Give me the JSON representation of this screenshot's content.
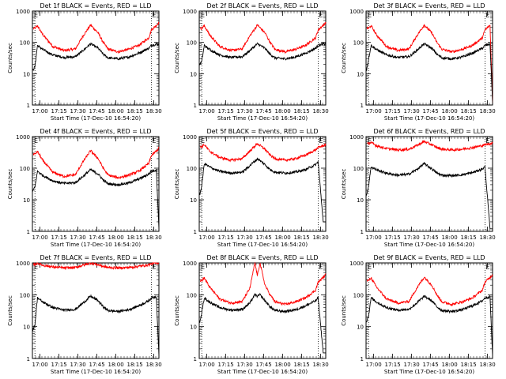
{
  "chart_data": {
    "type": "line",
    "yscale": "log",
    "ylabel": "Counts/sec",
    "xlabel": "Start Time (17-Dec-10 16:54:20)",
    "x_tick_labels": [
      "17:00",
      "17:15",
      "17:30",
      "17:45",
      "18:00",
      "18:15",
      "18:30"
    ],
    "x_ticks_min": [
      6,
      21,
      36,
      51,
      66,
      81,
      96
    ],
    "xlim_min": [
      0,
      100
    ],
    "y_tick_labels": [
      "1",
      "10",
      "100",
      "1000"
    ],
    "ylim": [
      1,
      1000
    ],
    "vlines_min": [
      2,
      94
    ],
    "corner_markers": [
      "E",
      "E"
    ],
    "series_colors": {
      "events": "#000000",
      "lld": "#ff0000"
    },
    "panels": [
      {
        "title": "Det 1f BLACK = Events, RED = LLD",
        "x": [
          0.5,
          2,
          4,
          8,
          16,
          25,
          34,
          40,
          46,
          52,
          56,
          60,
          68,
          76,
          84,
          92,
          94,
          98,
          100
        ],
        "events": [
          13,
          17,
          80,
          60,
          40,
          33,
          35,
          55,
          90,
          65,
          42,
          32,
          30,
          34,
          45,
          65,
          80,
          88,
          90
        ],
        "lld": [
          null,
          280,
          340,
          180,
          75,
          55,
          62,
          160,
          360,
          200,
          100,
          60,
          50,
          60,
          80,
          140,
          250,
          350,
          430
        ]
      },
      {
        "title": "Det 2f BLACK = Events, RED = LLD",
        "x": [
          0.5,
          2,
          4,
          8,
          16,
          25,
          34,
          40,
          46,
          52,
          56,
          60,
          68,
          76,
          84,
          92,
          94,
          98,
          100
        ],
        "events": [
          20,
          25,
          80,
          60,
          40,
          33,
          35,
          55,
          90,
          65,
          42,
          32,
          30,
          34,
          45,
          65,
          80,
          88,
          90
        ],
        "lld": [
          null,
          280,
          340,
          180,
          75,
          55,
          62,
          160,
          360,
          200,
          100,
          60,
          50,
          60,
          80,
          140,
          250,
          350,
          430
        ]
      },
      {
        "title": "Det 3f BLACK = Events, RED = LLD",
        "x": [
          0.5,
          2,
          4,
          8,
          16,
          25,
          34,
          40,
          46,
          52,
          56,
          60,
          68,
          76,
          84,
          92,
          94,
          98,
          100
        ],
        "events": [
          14,
          30,
          80,
          60,
          40,
          33,
          35,
          55,
          90,
          65,
          42,
          32,
          30,
          34,
          45,
          65,
          80,
          88,
          1.2
        ],
        "lld": [
          null,
          280,
          340,
          180,
          75,
          55,
          62,
          160,
          360,
          200,
          100,
          60,
          50,
          60,
          80,
          140,
          250,
          350,
          1.2
        ]
      },
      {
        "title": "Det 4f BLACK = Events, RED = LLD",
        "x": [
          0.5,
          2,
          4,
          8,
          16,
          25,
          34,
          40,
          46,
          52,
          56,
          60,
          68,
          76,
          84,
          92,
          94,
          98,
          100
        ],
        "events": [
          20,
          25,
          80,
          60,
          40,
          33,
          35,
          55,
          90,
          65,
          42,
          32,
          30,
          34,
          45,
          65,
          80,
          88,
          1.2
        ],
        "lld": [
          null,
          280,
          340,
          180,
          75,
          55,
          62,
          160,
          360,
          200,
          100,
          60,
          50,
          60,
          80,
          140,
          250,
          350,
          430
        ]
      },
      {
        "title": "Det 5f BLACK = Events, RED = LLD",
        "x": [
          0.5,
          2,
          4,
          8,
          16,
          25,
          34,
          40,
          46,
          52,
          56,
          60,
          68,
          76,
          84,
          92,
          94,
          98,
          100
        ],
        "events": [
          15,
          28,
          140,
          110,
          80,
          70,
          75,
          120,
          200,
          130,
          90,
          75,
          70,
          75,
          90,
          130,
          160,
          2,
          2
        ],
        "lld": [
          null,
          480,
          560,
          350,
          220,
          180,
          200,
          350,
          600,
          400,
          260,
          200,
          180,
          200,
          260,
          380,
          450,
          520,
          560
        ]
      },
      {
        "title": "Det 6f BLACK = Events, RED = LLD",
        "x": [
          0.5,
          2,
          4,
          8,
          16,
          25,
          34,
          40,
          46,
          52,
          56,
          60,
          68,
          76,
          84,
          92,
          94,
          98,
          100
        ],
        "events": [
          15,
          28,
          110,
          90,
          70,
          60,
          65,
          90,
          140,
          95,
          70,
          60,
          58,
          62,
          72,
          95,
          110,
          1.2,
          1.2
        ],
        "lld": [
          null,
          600,
          650,
          520,
          420,
          380,
          400,
          520,
          700,
          550,
          450,
          400,
          380,
          400,
          450,
          520,
          560,
          600,
          620
        ]
      },
      {
        "title": "Det 7f BLACK = Events, RED = LLD",
        "x": [
          0.5,
          2,
          4,
          8,
          16,
          25,
          34,
          40,
          46,
          52,
          56,
          60,
          68,
          76,
          84,
          92,
          94,
          98,
          100
        ],
        "events": [
          8,
          12,
          80,
          60,
          40,
          33,
          35,
          55,
          90,
          65,
          42,
          32,
          30,
          34,
          45,
          65,
          80,
          88,
          1.2
        ],
        "lld": [
          null,
          900,
          1000,
          850,
          750,
          700,
          720,
          850,
          1000,
          880,
          780,
          720,
          700,
          720,
          780,
          880,
          950,
          1000,
          1000
        ]
      },
      {
        "title": "Det 8f BLACK = Events, RED = LLD",
        "x": [
          0.5,
          2,
          4,
          8,
          16,
          25,
          34,
          40,
          44,
          46,
          48,
          52,
          56,
          60,
          68,
          76,
          84,
          92,
          94,
          98,
          100
        ],
        "events": [
          15,
          28,
          80,
          60,
          40,
          33,
          35,
          55,
          100,
          90,
          100,
          65,
          42,
          32,
          30,
          34,
          45,
          65,
          80,
          1.5,
          1.5
        ],
        "lld": [
          null,
          280,
          340,
          180,
          75,
          55,
          62,
          160,
          1000,
          400,
          1000,
          200,
          100,
          60,
          50,
          60,
          80,
          140,
          250,
          350,
          430
        ]
      },
      {
        "title": "Det 9f BLACK = Events, RED = LLD",
        "x": [
          0.5,
          2,
          4,
          8,
          16,
          25,
          34,
          40,
          46,
          52,
          56,
          60,
          68,
          76,
          84,
          92,
          94,
          98,
          100
        ],
        "events": [
          15,
          22,
          80,
          60,
          40,
          33,
          35,
          55,
          90,
          65,
          42,
          32,
          30,
          34,
          45,
          65,
          80,
          88,
          1.2
        ],
        "lld": [
          null,
          280,
          340,
          180,
          75,
          55,
          62,
          160,
          360,
          200,
          100,
          60,
          50,
          60,
          80,
          140,
          250,
          350,
          430
        ]
      }
    ]
  }
}
